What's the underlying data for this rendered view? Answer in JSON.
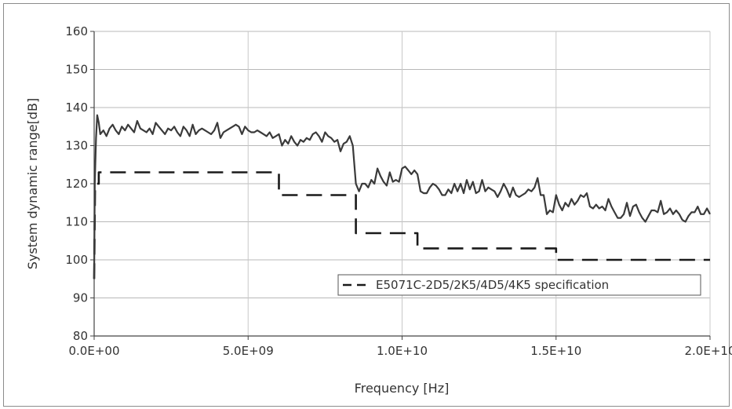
{
  "chart_data": {
    "type": "line",
    "xlabel": "Frequency [Hz]",
    "ylabel": "System dynamic range[dB]",
    "xlim": [
      0,
      20000000000
    ],
    "ylim": [
      80,
      160
    ],
    "x_ticks": [
      {
        "value": 0,
        "label": "0.0E+00"
      },
      {
        "value": 5000000000,
        "label": "5.0E+09"
      },
      {
        "value": 10000000000,
        "label": "1.0E+10"
      },
      {
        "value": 15000000000,
        "label": "1.5E+10"
      },
      {
        "value": 20000000000,
        "label": "2.0E+10"
      }
    ],
    "y_ticks": [
      80,
      90,
      100,
      110,
      120,
      130,
      140,
      150,
      160
    ],
    "grid": true,
    "legend_position": "bottom-right",
    "series": [
      {
        "name": "",
        "style": "solid",
        "color": "#3a3a3a",
        "points": [
          [
            0,
            95
          ],
          [
            20000000,
            120
          ],
          [
            60000000,
            132
          ],
          [
            100000000,
            138
          ],
          [
            150000000,
            136
          ],
          [
            200000000,
            133
          ],
          [
            300000000,
            134
          ],
          [
            400000000,
            132.5
          ],
          [
            500000000,
            134.5
          ],
          [
            600000000,
            135.5
          ],
          [
            700000000,
            134
          ],
          [
            800000000,
            133
          ],
          [
            900000000,
            135
          ],
          [
            1000000000,
            134
          ],
          [
            1100000000,
            135.5
          ],
          [
            1200000000,
            134.5
          ],
          [
            1300000000,
            133.5
          ],
          [
            1400000000,
            136.5
          ],
          [
            1500000000,
            134.5
          ],
          [
            1600000000,
            134
          ],
          [
            1700000000,
            133.5
          ],
          [
            1800000000,
            134.5
          ],
          [
            1900000000,
            133
          ],
          [
            2000000000,
            136
          ],
          [
            2100000000,
            135
          ],
          [
            2200000000,
            134
          ],
          [
            2300000000,
            133
          ],
          [
            2400000000,
            134.5
          ],
          [
            2500000000,
            134
          ],
          [
            2600000000,
            135
          ],
          [
            2700000000,
            133.5
          ],
          [
            2800000000,
            132.5
          ],
          [
            2900000000,
            135
          ],
          [
            3000000000,
            134
          ],
          [
            3100000000,
            132.5
          ],
          [
            3200000000,
            135.5
          ],
          [
            3300000000,
            133
          ],
          [
            3400000000,
            134
          ],
          [
            3500000000,
            134.5
          ],
          [
            3600000000,
            134
          ],
          [
            3700000000,
            133.5
          ],
          [
            3800000000,
            133
          ],
          [
            3900000000,
            134
          ],
          [
            4000000000,
            136
          ],
          [
            4100000000,
            132
          ],
          [
            4200000000,
            133.5
          ],
          [
            4300000000,
            134
          ],
          [
            4400000000,
            134.5
          ],
          [
            4500000000,
            135
          ],
          [
            4600000000,
            135.5
          ],
          [
            4700000000,
            135
          ],
          [
            4800000000,
            133
          ],
          [
            4900000000,
            135
          ],
          [
            5000000000,
            134
          ],
          [
            5100000000,
            133.5
          ],
          [
            5200000000,
            133.5
          ],
          [
            5300000000,
            134
          ],
          [
            5400000000,
            133.5
          ],
          [
            5500000000,
            133
          ],
          [
            5600000000,
            132.5
          ],
          [
            5700000000,
            133.5
          ],
          [
            5800000000,
            132
          ],
          [
            5900000000,
            132.5
          ],
          [
            6000000000,
            133
          ],
          [
            6100000000,
            130
          ],
          [
            6200000000,
            131.5
          ],
          [
            6300000000,
            130.5
          ],
          [
            6400000000,
            132.5
          ],
          [
            6500000000,
            131
          ],
          [
            6600000000,
            130
          ],
          [
            6700000000,
            131.5
          ],
          [
            6800000000,
            131
          ],
          [
            6900000000,
            132
          ],
          [
            7000000000,
            131.5
          ],
          [
            7100000000,
            133
          ],
          [
            7200000000,
            133.5
          ],
          [
            7300000000,
            132.5
          ],
          [
            7400000000,
            131
          ],
          [
            7500000000,
            133.5
          ],
          [
            7600000000,
            132.5
          ],
          [
            7700000000,
            132
          ],
          [
            7800000000,
            131
          ],
          [
            7900000000,
            131.5
          ],
          [
            8000000000,
            128.5
          ],
          [
            8100000000,
            130.5
          ],
          [
            8200000000,
            131
          ],
          [
            8300000000,
            132.5
          ],
          [
            8400000000,
            130
          ],
          [
            8500000000,
            120
          ],
          [
            8600000000,
            118
          ],
          [
            8700000000,
            120
          ],
          [
            8800000000,
            120
          ],
          [
            8900000000,
            119
          ],
          [
            9000000000,
            121
          ],
          [
            9100000000,
            120
          ],
          [
            9200000000,
            124
          ],
          [
            9300000000,
            122
          ],
          [
            9400000000,
            120.5
          ],
          [
            9500000000,
            119.5
          ],
          [
            9600000000,
            123
          ],
          [
            9700000000,
            120.5
          ],
          [
            9800000000,
            121
          ],
          [
            9900000000,
            120.5
          ],
          [
            10000000000,
            124
          ],
          [
            10100000000,
            124.5
          ],
          [
            10200000000,
            123.5
          ],
          [
            10300000000,
            122.5
          ],
          [
            10400000000,
            123.5
          ],
          [
            10500000000,
            122.5
          ],
          [
            10600000000,
            118
          ],
          [
            10700000000,
            117.5
          ],
          [
            10800000000,
            117.5
          ],
          [
            10900000000,
            119
          ],
          [
            11000000000,
            120
          ],
          [
            11100000000,
            119.5
          ],
          [
            11200000000,
            118.5
          ],
          [
            11300000000,
            117
          ],
          [
            11400000000,
            117
          ],
          [
            11500000000,
            118.5
          ],
          [
            11600000000,
            117.5
          ],
          [
            11700000000,
            120
          ],
          [
            11800000000,
            118
          ],
          [
            11900000000,
            120
          ],
          [
            12000000000,
            117.5
          ],
          [
            12100000000,
            121
          ],
          [
            12200000000,
            118.5
          ],
          [
            12300000000,
            120.5
          ],
          [
            12400000000,
            117.5
          ],
          [
            12500000000,
            118
          ],
          [
            12600000000,
            121
          ],
          [
            12700000000,
            118
          ],
          [
            12800000000,
            119
          ],
          [
            12900000000,
            118.5
          ],
          [
            13000000000,
            118
          ],
          [
            13100000000,
            116.5
          ],
          [
            13200000000,
            118
          ],
          [
            13300000000,
            120
          ],
          [
            13400000000,
            118.5
          ],
          [
            13500000000,
            116.5
          ],
          [
            13600000000,
            119
          ],
          [
            13700000000,
            117
          ],
          [
            13800000000,
            116.5
          ],
          [
            13900000000,
            117
          ],
          [
            14000000000,
            117.5
          ],
          [
            14100000000,
            118.5
          ],
          [
            14200000000,
            118
          ],
          [
            14300000000,
            119
          ],
          [
            14400000000,
            121.5
          ],
          [
            14500000000,
            117
          ],
          [
            14600000000,
            117
          ],
          [
            14700000000,
            112
          ],
          [
            14800000000,
            113
          ],
          [
            14900000000,
            112.5
          ],
          [
            15000000000,
            117
          ],
          [
            15100000000,
            114.5
          ],
          [
            15200000000,
            113
          ],
          [
            15300000000,
            115
          ],
          [
            15400000000,
            114
          ],
          [
            15500000000,
            116
          ],
          [
            15600000000,
            114.5
          ],
          [
            15700000000,
            115.5
          ],
          [
            15800000000,
            117
          ],
          [
            15900000000,
            116.5
          ],
          [
            16000000000,
            117.5
          ],
          [
            16100000000,
            114
          ],
          [
            16200000000,
            113.5
          ],
          [
            16300000000,
            114.5
          ],
          [
            16400000000,
            113.5
          ],
          [
            16500000000,
            114
          ],
          [
            16600000000,
            113
          ],
          [
            16700000000,
            116
          ],
          [
            16800000000,
            114
          ],
          [
            16900000000,
            112.5
          ],
          [
            17000000000,
            111
          ],
          [
            17100000000,
            111
          ],
          [
            17200000000,
            112
          ],
          [
            17300000000,
            115
          ],
          [
            17400000000,
            111.5
          ],
          [
            17500000000,
            114
          ],
          [
            17600000000,
            114.5
          ],
          [
            17700000000,
            112.5
          ],
          [
            17800000000,
            111
          ],
          [
            17900000000,
            110
          ],
          [
            18000000000,
            111.5
          ],
          [
            18100000000,
            113
          ],
          [
            18200000000,
            113
          ],
          [
            18300000000,
            112.5
          ],
          [
            18400000000,
            115.5
          ],
          [
            18500000000,
            112
          ],
          [
            18600000000,
            112.5
          ],
          [
            18700000000,
            113.5
          ],
          [
            18800000000,
            112
          ],
          [
            18900000000,
            113
          ],
          [
            19000000000,
            112
          ],
          [
            19100000000,
            110.5
          ],
          [
            19200000000,
            110
          ],
          [
            19300000000,
            111.5
          ],
          [
            19400000000,
            112.5
          ],
          [
            19500000000,
            112.5
          ],
          [
            19600000000,
            114
          ],
          [
            19700000000,
            112
          ],
          [
            19800000000,
            112
          ],
          [
            19900000000,
            113.5
          ],
          [
            20000000000,
            112
          ]
        ]
      },
      {
        "name": "E5071C-2D5/2K5/4D5/4K5 specification",
        "style": "dashed",
        "color": "#1a1a1a",
        "points": [
          [
            0,
            95
          ],
          [
            30000000,
            120
          ],
          [
            150000000,
            120
          ],
          [
            150000000,
            123
          ],
          [
            6000000000,
            123
          ],
          [
            6000000000,
            117
          ],
          [
            8500000000,
            117
          ],
          [
            8500000000,
            107
          ],
          [
            10500000000,
            107
          ],
          [
            10500000000,
            103
          ],
          [
            15000000000,
            103
          ],
          [
            15000000000,
            100
          ],
          [
            20000000000,
            100
          ]
        ]
      }
    ]
  }
}
